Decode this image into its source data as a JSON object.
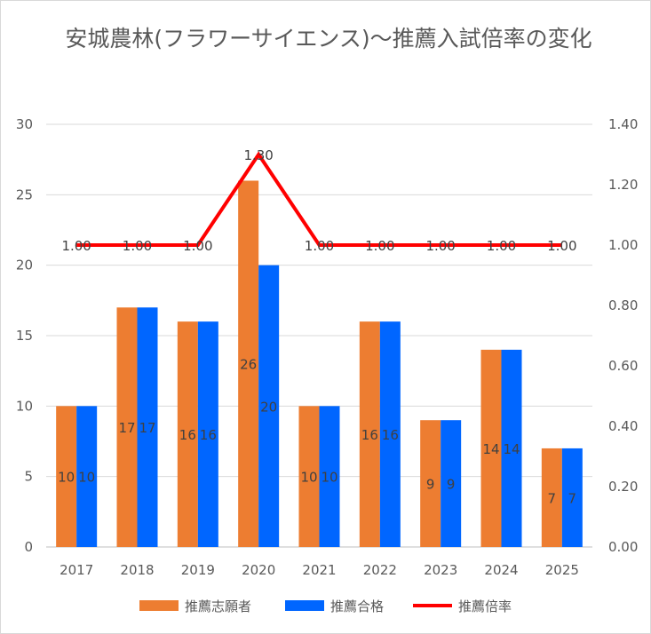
{
  "chart_data": {
    "type": "bar",
    "title": "安城農林(フラワーサイエンス)～推薦入試倍率の変化",
    "categories": [
      "2017",
      "2018",
      "2019",
      "2020",
      "2021",
      "2022",
      "2023",
      "2024",
      "2025"
    ],
    "series": [
      {
        "name": "推薦志願者",
        "kind": "bar",
        "axis": "left",
        "color": "#ED7D31",
        "values": [
          10,
          17,
          16,
          26,
          10,
          16,
          9,
          14,
          7
        ]
      },
      {
        "name": "推薦合格",
        "kind": "bar",
        "axis": "left",
        "color": "#0066FF",
        "values": [
          10,
          17,
          16,
          20,
          10,
          16,
          9,
          14,
          7
        ]
      },
      {
        "name": "推薦倍率",
        "kind": "line",
        "axis": "right",
        "color": "#FF0000",
        "values": [
          1.0,
          1.0,
          1.0,
          1.3,
          1.0,
          1.0,
          1.0,
          1.0,
          1.0
        ]
      }
    ],
    "ylim_left": [
      0,
      30
    ],
    "yticks_left": [
      "0",
      "5",
      "10",
      "15",
      "20",
      "25",
      "30"
    ],
    "ylim_right": [
      0,
      1.4
    ],
    "yticks_right": [
      "0.00",
      "0.20",
      "0.40",
      "0.60",
      "0.80",
      "1.00",
      "1.20",
      "1.40"
    ],
    "grid": true,
    "legend_position": "bottom"
  }
}
